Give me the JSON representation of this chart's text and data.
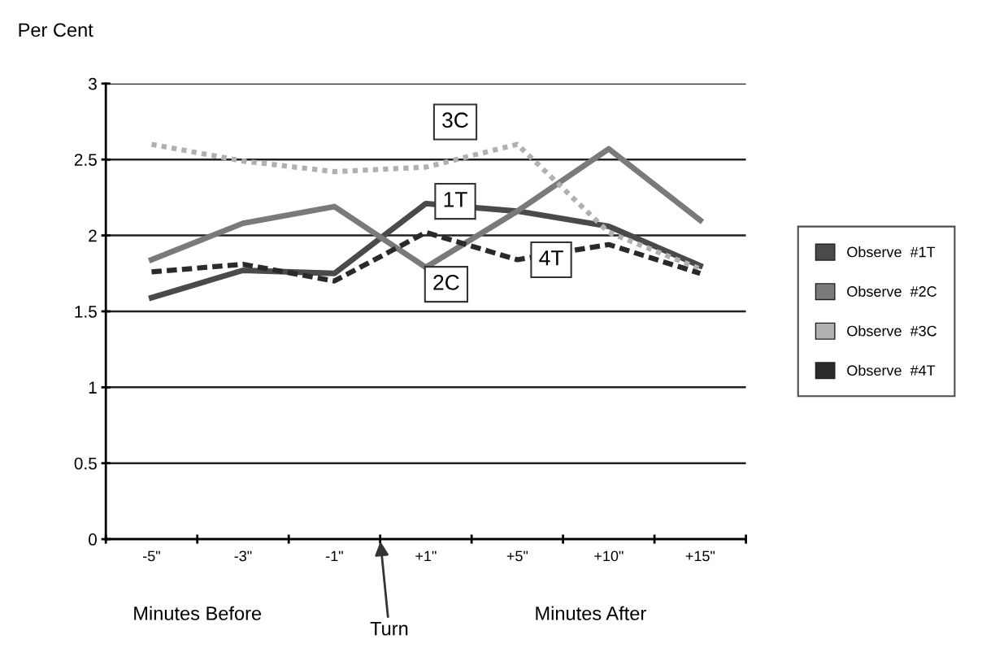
{
  "chart_data": {
    "type": "line",
    "ylabel": "Per Cent",
    "categories": [
      "-5\"",
      "-3\"",
      "-1\"",
      "+1\"",
      "+5\"",
      "+10\"",
      "+15\""
    ],
    "series": [
      {
        "name": "Observe  #1T",
        "color": "#4a4a4a",
        "line_style": "solid",
        "values": [
          1.59,
          1.77,
          1.75,
          2.21,
          2.16,
          2.06,
          1.8
        ]
      },
      {
        "name": "Observe  #2C",
        "color": "#7a7a7a",
        "line_style": "solid",
        "values": [
          1.84,
          2.08,
          2.19,
          1.79,
          2.16,
          2.57,
          2.1
        ]
      },
      {
        "name": "Observe  #3C",
        "color": "#b0b0b0",
        "line_style": "dotted",
        "values": [
          2.6,
          2.49,
          2.42,
          2.45,
          2.6,
          2.02,
          1.78
        ]
      },
      {
        "name": "Observe  #4T",
        "color": "#2a2a2a",
        "line_style": "dashed",
        "values": [
          1.76,
          1.81,
          1.7,
          2.02,
          1.84,
          1.94,
          1.75
        ]
      }
    ],
    "ylim": [
      0,
      3
    ],
    "yticks": [
      0,
      0.5,
      1,
      1.5,
      2,
      2.5,
      3
    ],
    "grid": "y",
    "legend": "right",
    "marker": "none",
    "annotations": [
      {
        "text": "1T",
        "x": "+1\"",
        "y": 2.21
      },
      {
        "text": "2C",
        "x": "+1\"",
        "y": 1.79
      },
      {
        "text": "3C",
        "x": "+1\"",
        "y": 2.45
      },
      {
        "text": "4T",
        "x": "+5\"",
        "y": 1.84
      },
      "Minutes Before",
      "Turn",
      "Minutes After"
    ]
  }
}
